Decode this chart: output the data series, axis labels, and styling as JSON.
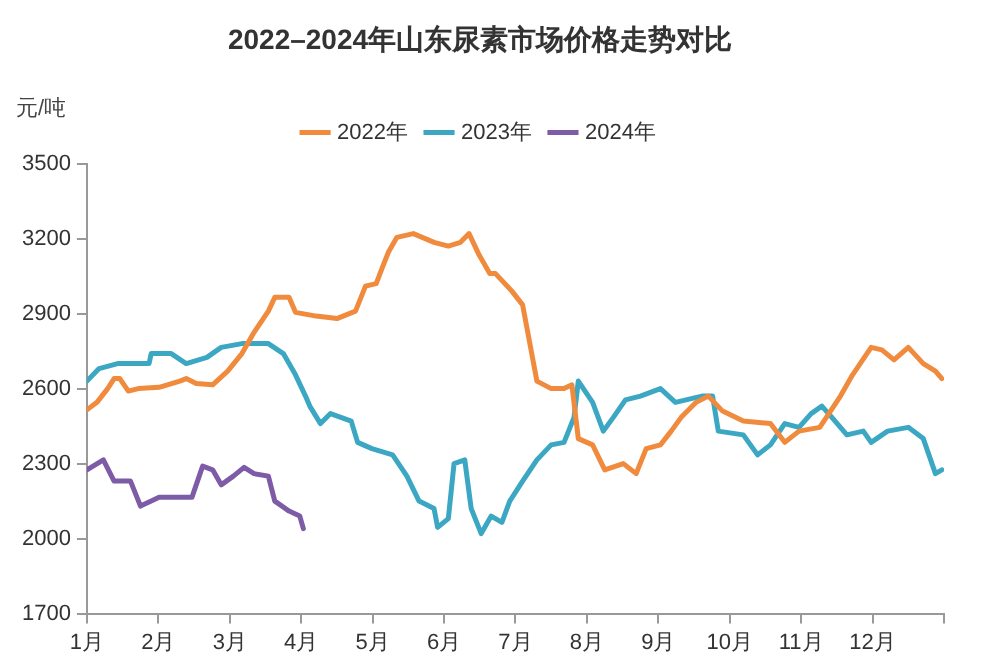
{
  "chart_data": {
    "type": "line",
    "title": "2022–2024年山东尿素市场价格走势对比",
    "ylabel": "元/吨",
    "xlim": [
      1,
      13
    ],
    "xticks": [
      {
        "value": 1,
        "label": "1月"
      },
      {
        "value": 2,
        "label": "2月"
      },
      {
        "value": 3,
        "label": "3月"
      },
      {
        "value": 4,
        "label": "4月"
      },
      {
        "value": 5,
        "label": "5月"
      },
      {
        "value": 6,
        "label": "6月"
      },
      {
        "value": 7,
        "label": "7月"
      },
      {
        "value": 8,
        "label": "8月"
      },
      {
        "value": 9,
        "label": "9月"
      },
      {
        "value": 10,
        "label": "10月"
      },
      {
        "value": 11,
        "label": "11月"
      },
      {
        "value": 12,
        "label": "12月"
      },
      {
        "value": 13,
        "label": null
      }
    ],
    "ylim": [
      1700,
      3500
    ],
    "yticks": [
      1700,
      2000,
      2300,
      2600,
      2900,
      3200,
      3500
    ],
    "grid": false,
    "legend": "top",
    "marker": "none",
    "series": [
      {
        "name": "2022年",
        "color": "#f08a3c",
        "x": [
          1.0,
          1.14,
          1.29,
          1.38,
          1.46,
          1.58,
          1.72,
          2.01,
          2.3,
          2.39,
          2.53,
          2.76,
          2.97,
          3.17,
          3.34,
          3.54,
          3.63,
          3.83,
          3.92,
          4.21,
          4.5,
          4.76,
          4.9,
          5.05,
          5.13,
          5.22,
          5.34,
          5.57,
          5.86,
          6.06,
          6.23,
          6.35,
          6.49,
          6.64,
          6.72,
          6.95,
          7.1,
          7.3,
          7.5,
          7.68,
          7.79,
          7.88,
          8.08,
          8.25,
          8.51,
          8.69,
          8.83,
          9.03,
          9.18,
          9.32,
          9.53,
          9.7,
          9.9,
          10.19,
          10.57,
          10.77,
          10.97,
          11.26,
          11.55,
          11.72,
          11.98,
          12.13,
          12.3,
          12.5,
          12.71,
          12.88,
          12.97
        ],
        "values": [
          2515,
          2545,
          2600,
          2640,
          2640,
          2590,
          2600,
          2605,
          2630,
          2640,
          2620,
          2615,
          2670,
          2740,
          2825,
          2910,
          2965,
          2965,
          2905,
          2890,
          2880,
          2910,
          3010,
          3020,
          3080,
          3145,
          3205,
          3220,
          3185,
          3170,
          3185,
          3220,
          3135,
          3060,
          3060,
          2990,
          2935,
          2630,
          2600,
          2600,
          2615,
          2400,
          2375,
          2275,
          2300,
          2260,
          2360,
          2375,
          2430,
          2485,
          2545,
          2570,
          2510,
          2470,
          2460,
          2385,
          2430,
          2445,
          2570,
          2655,
          2765,
          2755,
          2715,
          2765,
          2700,
          2670,
          2640
        ]
      },
      {
        "name": "2023年",
        "color": "#3ba7c2",
        "x": [
          1.0,
          1.17,
          1.43,
          1.87,
          1.9,
          2.18,
          2.39,
          2.68,
          2.88,
          3.17,
          3.54,
          3.75,
          3.92,
          4.06,
          4.12,
          4.27,
          4.41,
          4.7,
          4.79,
          4.99,
          5.28,
          5.48,
          5.65,
          5.86,
          5.91,
          6.06,
          6.14,
          6.29,
          6.38,
          6.52,
          6.66,
          6.81,
          6.92,
          7.1,
          7.3,
          7.5,
          7.68,
          7.82,
          7.88,
          8.08,
          8.23,
          8.37,
          8.54,
          8.75,
          9.03,
          9.24,
          9.61,
          9.76,
          9.84,
          10.19,
          10.39,
          10.57,
          10.77,
          10.97,
          11.14,
          11.29,
          11.43,
          11.64,
          11.87,
          11.98,
          12.21,
          12.5,
          12.71,
          12.88,
          12.97
        ],
        "values": [
          2630,
          2680,
          2700,
          2700,
          2740,
          2740,
          2700,
          2725,
          2765,
          2780,
          2780,
          2740,
          2655,
          2570,
          2530,
          2460,
          2500,
          2470,
          2385,
          2360,
          2335,
          2250,
          2150,
          2120,
          2045,
          2080,
          2300,
          2315,
          2120,
          2020,
          2090,
          2065,
          2150,
          2230,
          2315,
          2375,
          2385,
          2485,
          2630,
          2545,
          2430,
          2485,
          2555,
          2570,
          2600,
          2545,
          2570,
          2570,
          2430,
          2415,
          2335,
          2375,
          2460,
          2445,
          2500,
          2530,
          2485,
          2415,
          2430,
          2385,
          2430,
          2445,
          2400,
          2260,
          2275
        ]
      },
      {
        "name": "2024年",
        "color": "#7d5ba6",
        "x": [
          1.0,
          1.23,
          1.38,
          1.61,
          1.75,
          1.9,
          2.01,
          2.47,
          2.62,
          2.76,
          2.88,
          3.05,
          3.2,
          3.34,
          3.54,
          3.63,
          3.83,
          3.98,
          4.03
        ],
        "values": [
          2275,
          2315,
          2230,
          2230,
          2130,
          2150,
          2165,
          2165,
          2290,
          2275,
          2215,
          2250,
          2285,
          2260,
          2250,
          2150,
          2110,
          2090,
          2040
        ]
      }
    ]
  }
}
